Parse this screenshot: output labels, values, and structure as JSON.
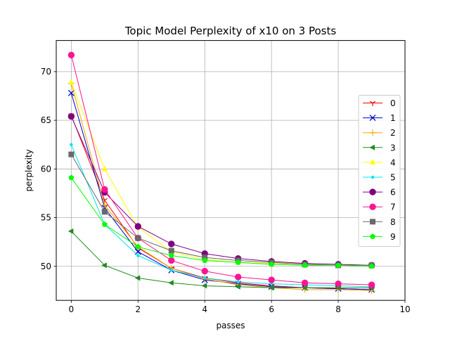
{
  "chart_data": {
    "type": "line",
    "title": "Topic Model Perplexity of x10 on 3 Posts",
    "xlabel": "passes",
    "ylabel": "perplexity",
    "xlim": [
      -0.45,
      10
    ],
    "ylim": [
      46.5,
      73.2
    ],
    "xticks": [
      0,
      2,
      4,
      6,
      8,
      10
    ],
    "yticks": [
      50,
      55,
      60,
      65,
      70
    ],
    "grid": true,
    "legend_position": "center-right",
    "x": [
      0,
      1,
      2,
      3,
      4,
      5,
      6,
      7,
      8,
      9
    ],
    "series": [
      {
        "name": "0",
        "color": "#ff0000",
        "marker": "tri_down",
        "values": [
          65.5,
          56.8,
          51.9,
          49.8,
          48.8,
          48.3,
          48.0,
          47.8,
          47.7,
          47.6
        ]
      },
      {
        "name": "1",
        "color": "#0000cd",
        "marker": "x",
        "values": [
          67.8,
          56.0,
          51.5,
          49.6,
          48.6,
          48.2,
          47.9,
          47.8,
          47.7,
          47.6
        ]
      },
      {
        "name": "2",
        "color": "#ffa500",
        "marker": "plus",
        "values": [
          68.8,
          56.3,
          52.0,
          49.8,
          48.7,
          48.1,
          47.8,
          47.6,
          47.6,
          47.5
        ]
      },
      {
        "name": "3",
        "color": "#228b22",
        "marker": "tri_left",
        "values": [
          53.6,
          50.1,
          48.8,
          48.3,
          48.0,
          47.9,
          47.8,
          47.8,
          47.8,
          47.8
        ]
      },
      {
        "name": "4",
        "color": "#ffff00",
        "marker": "tri_up",
        "values": [
          68.9,
          60.0,
          54.0,
          51.5,
          50.7,
          50.4,
          50.3,
          50.2,
          50.1,
          50.0
        ]
      },
      {
        "name": "5",
        "color": "#00e5ee",
        "marker": "point",
        "values": [
          62.5,
          54.3,
          51.1,
          49.6,
          48.8,
          48.4,
          48.2,
          48.1,
          48.0,
          47.9
        ]
      },
      {
        "name": "6",
        "color": "#800080",
        "marker": "circle",
        "values": [
          65.4,
          57.6,
          54.1,
          52.3,
          51.3,
          50.8,
          50.5,
          50.3,
          50.2,
          50.1
        ]
      },
      {
        "name": "7",
        "color": "#ff1493",
        "marker": "circle",
        "values": [
          71.7,
          57.9,
          52.9,
          50.6,
          49.5,
          48.9,
          48.6,
          48.3,
          48.2,
          48.1
        ]
      },
      {
        "name": "8",
        "color": "#696969",
        "marker": "square",
        "values": [
          61.5,
          55.6,
          52.9,
          51.6,
          50.9,
          50.6,
          50.4,
          50.2,
          50.1,
          50.1
        ]
      },
      {
        "name": "9",
        "color": "#00ff00",
        "marker": "pentagon",
        "values": [
          59.1,
          54.3,
          52.0,
          51.1,
          50.6,
          50.4,
          50.2,
          50.1,
          50.1,
          50.0
        ]
      }
    ]
  }
}
